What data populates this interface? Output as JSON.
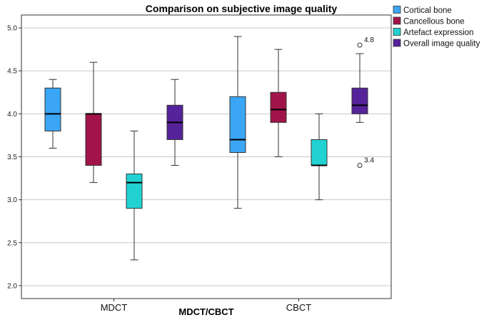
{
  "chart_data": {
    "type": "boxplot",
    "title": "Comparison on subjective image quality",
    "xlabel": "MDCT/CBCT",
    "ylabel": "",
    "ylim": [
      1.85,
      5.15
    ],
    "yticks": [
      "2.0",
      "2.5",
      "3.0",
      "3.5",
      "4.0",
      "4.5",
      "5.0"
    ],
    "categories": [
      "MDCT",
      "CBCT"
    ],
    "grid": true,
    "legend_position": "top-right",
    "series": [
      {
        "name": "Cortical bone",
        "color": "#3aa6f5",
        "boxes": [
          {
            "min": 3.6,
            "q1": 3.8,
            "median": 4.0,
            "q3": 4.3,
            "max": 4.4
          },
          {
            "min": 2.9,
            "q1": 3.55,
            "median": 3.7,
            "q3": 4.2,
            "max": 4.9
          }
        ]
      },
      {
        "name": "Cancellous bone",
        "color": "#a1144a",
        "boxes": [
          {
            "min": 3.2,
            "q1": 3.4,
            "median": 4.0,
            "q3": 4.0,
            "max": 4.6
          },
          {
            "min": 3.5,
            "q1": 3.9,
            "median": 4.05,
            "q3": 4.25,
            "max": 4.75
          }
        ]
      },
      {
        "name": "Artefact expression",
        "color": "#22d2d2",
        "boxes": [
          {
            "min": 2.3,
            "q1": 2.9,
            "median": 3.2,
            "q3": 3.3,
            "max": 3.8
          },
          {
            "min": 3.0,
            "q1": 3.4,
            "median": 3.4,
            "q3": 3.7,
            "max": 4.0
          }
        ]
      },
      {
        "name": "Overall image quality",
        "color": "#56229a",
        "boxes": [
          {
            "min": 3.4,
            "q1": 3.7,
            "median": 3.9,
            "q3": 4.1,
            "max": 4.4
          },
          {
            "min": 3.9,
            "q1": 4.0,
            "median": 4.1,
            "q3": 4.3,
            "max": 4.7
          }
        ]
      }
    ],
    "outliers": [
      {
        "category": "CBCT",
        "series": "Overall image quality",
        "value": 4.8,
        "label": "4.8"
      },
      {
        "category": "CBCT",
        "series": "Overall image quality",
        "value": 3.4,
        "label": "3.4"
      }
    ]
  }
}
